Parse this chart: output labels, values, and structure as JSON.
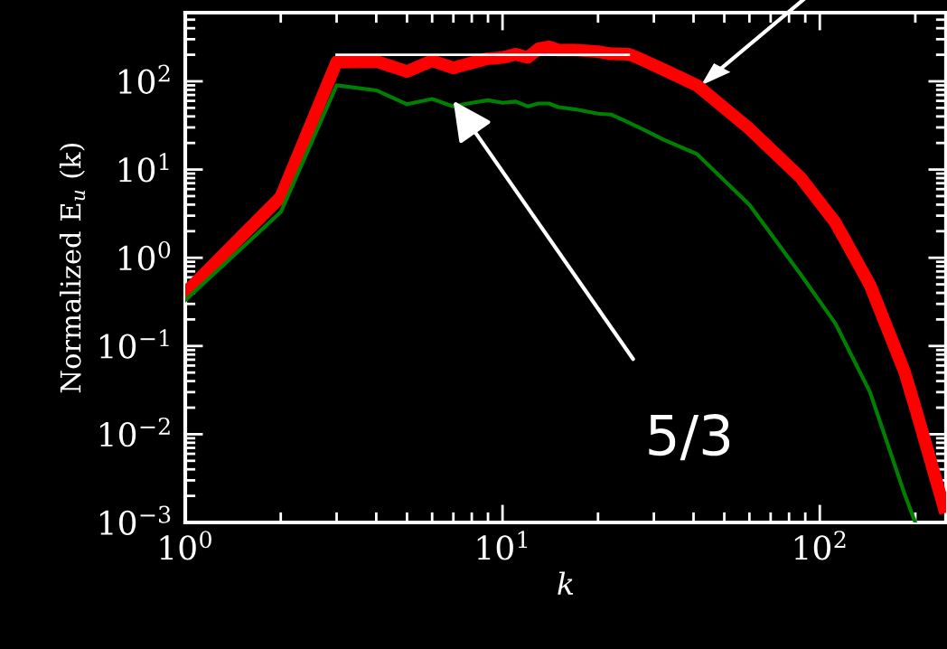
{
  "chart_data": {
    "type": "line",
    "xlabel": "k",
    "ylabel": "Normalized E$_{u}$ (k)",
    "log": "xy",
    "grid": false,
    "xlim": [
      1,
      250
    ],
    "ylim": [
      0.001,
      600
    ],
    "xticks": [
      {
        "value": 1,
        "label": "10$^{0}$"
      },
      {
        "value": 10,
        "label": "10$^{1}$"
      },
      {
        "value": 100,
        "label": "10$^{2}$"
      }
    ],
    "yticks": [
      {
        "value": 0.001,
        "label": "10$^{−3}$"
      },
      {
        "value": 0.01,
        "label": "10$^{−2}$"
      },
      {
        "value": 0.1,
        "label": "10$^{−1}$"
      },
      {
        "value": 1,
        "label": "10$^{0}$"
      },
      {
        "value": 10,
        "label": "10$^{1}$"
      },
      {
        "value": 100,
        "label": "10$^{2}$"
      }
    ],
    "series": [
      {
        "color": "#ff0000",
        "x": [
          1,
          2,
          3,
          4,
          5,
          6,
          7,
          8,
          9,
          10,
          11,
          12,
          13,
          14,
          15,
          17,
          20,
          22,
          25,
          28,
          32,
          41,
          60,
          87,
          112,
          144,
          185,
          200,
          246
        ],
        "values": [
          0.4,
          4.9,
          165,
          168,
          129,
          171,
          142,
          162,
          181,
          186,
          203,
          186,
          234,
          245,
          226,
          226,
          217,
          205,
          203,
          171,
          137,
          90,
          29,
          8.1,
          2.5,
          0.49,
          0.051,
          0.02,
          0.0015
        ]
      },
      {
        "color": "#008000",
        "x": [
          1,
          2,
          3,
          4,
          5,
          6,
          7,
          8,
          9,
          10,
          11,
          12,
          13,
          14,
          15,
          17,
          20,
          22,
          25,
          28,
          32,
          41,
          60,
          87,
          112,
          144,
          185,
          200
        ],
        "values": [
          0.33,
          3.3,
          90,
          79,
          55,
          63,
          52,
          57,
          61,
          57,
          59,
          52,
          56,
          56,
          51,
          48,
          43,
          42,
          34,
          28,
          22,
          15,
          4.0,
          0.65,
          0.18,
          0.03,
          0.0021,
          0.001
        ]
      },
      {
        "color": "#ffffff",
        "x": [
          3,
          25
        ],
        "values": [
          200,
          200
        ]
      }
    ],
    "annotations": [
      {
        "text": "5/3",
        "x": 7,
        "y": 60
      }
    ]
  }
}
